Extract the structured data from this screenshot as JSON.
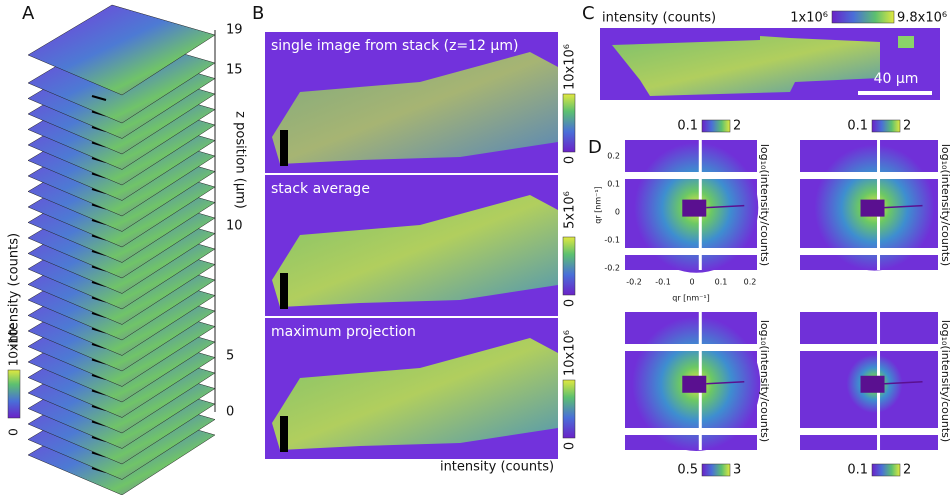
{
  "panels": {
    "a": {
      "label": "A",
      "z_axis_label": "z position (μm)",
      "z_ticks": [
        "19",
        "15",
        "10",
        "5",
        "0"
      ],
      "colorbar_label": "intensity (counts)",
      "colorbar_max": "10x10⁶",
      "colorbar_min": "0"
    },
    "b": {
      "label": "B",
      "images": [
        {
          "title": "single image from stack (z=12 μm)",
          "colorbar_max": "10x10⁶",
          "colorbar_min": "0"
        },
        {
          "title": "stack average",
          "colorbar_max": "5x10⁶",
          "colorbar_min": "0"
        },
        {
          "title": "maximum projection",
          "colorbar_max": "10x10⁶",
          "colorbar_min": "0"
        }
      ],
      "colorbar_label": "intensity (counts)"
    },
    "c": {
      "label": "C",
      "colorbar_label": "intensity (counts)",
      "colorbar_min": "1x10⁶",
      "colorbar_max": "9.8x10⁶",
      "scale_bar": "40 μm"
    },
    "d": {
      "label": "D",
      "y_ticks": [
        "0.2",
        "0.1",
        "0",
        "-0.1",
        "-0.2"
      ],
      "x_ticks": [
        "-0.2",
        "-0.1",
        "0",
        "0.1",
        "0.2"
      ],
      "x_label": "qr [nm⁻¹]",
      "y_label": "qr [nm⁻¹]",
      "plots": [
        {
          "colorbar_min": "0.1",
          "colorbar_max": "2",
          "colorbar_label": "log₁₀(intensity/counts)"
        },
        {
          "colorbar_min": "0.1",
          "colorbar_max": "2",
          "colorbar_label": "log₁₀(intensity/counts)"
        },
        {
          "colorbar_min": "0.5",
          "colorbar_max": "3",
          "colorbar_label": "log₁₀(intensity/counts)"
        },
        {
          "colorbar_min": "0.1",
          "colorbar_max": "2",
          "colorbar_label": "log₁₀(intensity/counts)"
        }
      ]
    }
  }
}
